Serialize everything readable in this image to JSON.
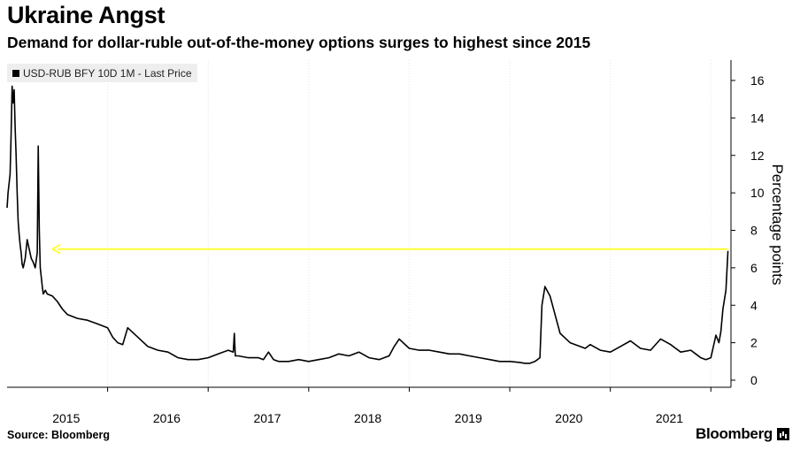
{
  "header": {
    "title": "Ukraine Angst",
    "subtitle": "Demand for dollar-ruble out-of-the-money options surges to highest since 2015"
  },
  "footer": {
    "source": "Source: Bloomberg",
    "brand": "Bloomberg"
  },
  "colors": {
    "series": "#000000",
    "annotation": "#ffff33",
    "grid": "#e6e6e6"
  },
  "chart_data": {
    "type": "line",
    "xlabel": "",
    "ylabel": "Percentage points",
    "ylim": [
      0,
      17
    ],
    "yticks": [
      0,
      2,
      4,
      6,
      8,
      10,
      12,
      14,
      16
    ],
    "y_axis_side": "right",
    "xlim": [
      2014.5,
      2021.7
    ],
    "xticks": [
      {
        "label": "2015",
        "value": 2015.0
      },
      {
        "label": "2016",
        "value": 2016.0
      },
      {
        "label": "2017",
        "value": 2017.0
      },
      {
        "label": "2018",
        "value": 2018.0
      },
      {
        "label": "2019",
        "value": 2019.0
      },
      {
        "label": "2020",
        "value": 2020.0
      },
      {
        "label": "2021",
        "value": 2021.0
      }
    ],
    "grid": "vertical-dotted",
    "legend": "top-left",
    "series": [
      {
        "name": "USD-RUB BFY 10D 1M - Last Price",
        "x": [
          2014.5,
          2014.51,
          2014.53,
          2014.54,
          2014.55,
          2014.56,
          2014.57,
          2014.58,
          2014.59,
          2014.6,
          2014.61,
          2014.62,
          2014.63,
          2014.64,
          2014.65,
          2014.66,
          2014.68,
          2014.7,
          2014.72,
          2014.74,
          2014.76,
          2014.78,
          2014.8,
          2014.81,
          2014.82,
          2014.83,
          2014.85,
          2014.86,
          2014.88,
          2014.9,
          2014.95,
          2015.0,
          2015.05,
          2015.1,
          2015.2,
          2015.3,
          2015.4,
          2015.5,
          2015.55,
          2015.6,
          2015.65,
          2015.7,
          2015.8,
          2015.9,
          2016.0,
          2016.1,
          2016.2,
          2016.3,
          2016.4,
          2016.5,
          2016.6,
          2016.7,
          2016.75,
          2016.76,
          2016.77,
          2016.8,
          2016.9,
          2017.0,
          2017.05,
          2017.1,
          2017.15,
          2017.2,
          2017.3,
          2017.4,
          2017.5,
          2017.6,
          2017.7,
          2017.8,
          2017.9,
          2018.0,
          2018.1,
          2018.2,
          2018.3,
          2018.35,
          2018.4,
          2018.5,
          2018.6,
          2018.7,
          2018.8,
          2018.9,
          2019.0,
          2019.1,
          2019.2,
          2019.3,
          2019.4,
          2019.5,
          2019.6,
          2019.65,
          2019.7,
          2019.75,
          2019.8,
          2019.82,
          2019.85,
          2019.9,
          2019.95,
          2020.0,
          2020.1,
          2020.2,
          2020.25,
          2020.3,
          2020.4,
          2020.5,
          2020.6,
          2020.7,
          2020.8,
          2020.9,
          2021.0,
          2021.1,
          2021.2,
          2021.3,
          2021.35,
          2021.4,
          2021.45,
          2021.5,
          2021.55,
          2021.58,
          2021.6,
          2021.62,
          2021.65,
          2021.67
        ],
        "values": [
          9.2,
          10.0,
          11.0,
          13.0,
          15.7,
          14.8,
          15.5,
          13.5,
          12.0,
          10.0,
          8.5,
          7.8,
          7.2,
          6.8,
          6.2,
          6.0,
          6.5,
          7.5,
          7.0,
          6.5,
          6.3,
          6.0,
          6.8,
          12.5,
          8.0,
          6.0,
          5.0,
          4.6,
          4.8,
          4.6,
          4.5,
          4.2,
          3.8,
          3.5,
          3.3,
          3.2,
          3.0,
          2.8,
          2.3,
          2.0,
          1.9,
          2.8,
          2.3,
          1.8,
          1.6,
          1.5,
          1.2,
          1.1,
          1.1,
          1.2,
          1.4,
          1.6,
          1.5,
          2.5,
          1.3,
          1.3,
          1.2,
          1.2,
          1.1,
          1.5,
          1.1,
          1.0,
          1.0,
          1.1,
          1.0,
          1.1,
          1.2,
          1.4,
          1.3,
          1.5,
          1.2,
          1.1,
          1.3,
          1.8,
          2.2,
          1.7,
          1.6,
          1.6,
          1.5,
          1.4,
          1.4,
          1.3,
          1.2,
          1.1,
          1.0,
          1.0,
          0.95,
          0.9,
          0.9,
          1.0,
          1.2,
          4.0,
          5.0,
          4.5,
          3.5,
          2.5,
          2.0,
          1.8,
          1.7,
          1.9,
          1.6,
          1.5,
          1.8,
          2.1,
          1.7,
          1.6,
          2.2,
          1.9,
          1.5,
          1.6,
          1.4,
          1.2,
          1.1,
          1.2,
          2.4,
          2.0,
          2.6,
          3.8,
          4.8,
          6.9
        ]
      }
    ],
    "annotations": [
      {
        "type": "arrow",
        "color": "#ffff33",
        "y": 7.0,
        "x_from": 2021.67,
        "x_to": 2014.95
      }
    ]
  }
}
